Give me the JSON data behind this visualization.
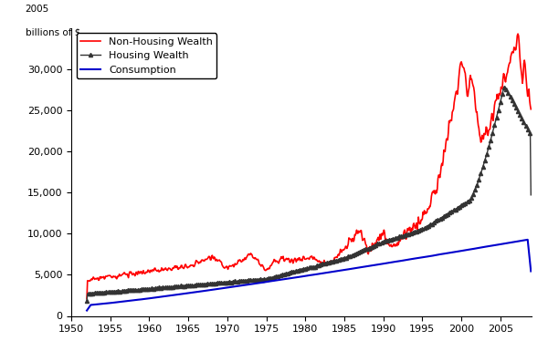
{
  "title": "",
  "ylabel_line1": "2005",
  "ylabel_line2": "billions of $",
  "xlabel": "",
  "ylim": [
    0,
    35000
  ],
  "xlim": [
    1950,
    2009
  ],
  "yticks": [
    0,
    5000,
    10000,
    15000,
    20000,
    25000,
    30000
  ],
  "xticks": [
    1950,
    1955,
    1960,
    1965,
    1970,
    1975,
    1980,
    1985,
    1990,
    1995,
    2000,
    2005
  ],
  "series": {
    "non_housing": {
      "label": "Non-Housing Wealth",
      "color": "#ff0000",
      "linewidth": 1.2,
      "marker": null,
      "linestyle": "-"
    },
    "housing": {
      "label": "Housing Wealth",
      "color": "#333333",
      "linewidth": 1.0,
      "marker": "^",
      "markersize": 3,
      "markevery": 3,
      "linestyle": "-"
    },
    "consumption": {
      "label": "Consumption",
      "color": "#0000cc",
      "linewidth": 1.5,
      "marker": null,
      "linestyle": "-"
    }
  },
  "legend": {
    "loc": "upper left",
    "fontsize": 8,
    "frameon": true
  },
  "background_color": "#ffffff",
  "grid": false
}
